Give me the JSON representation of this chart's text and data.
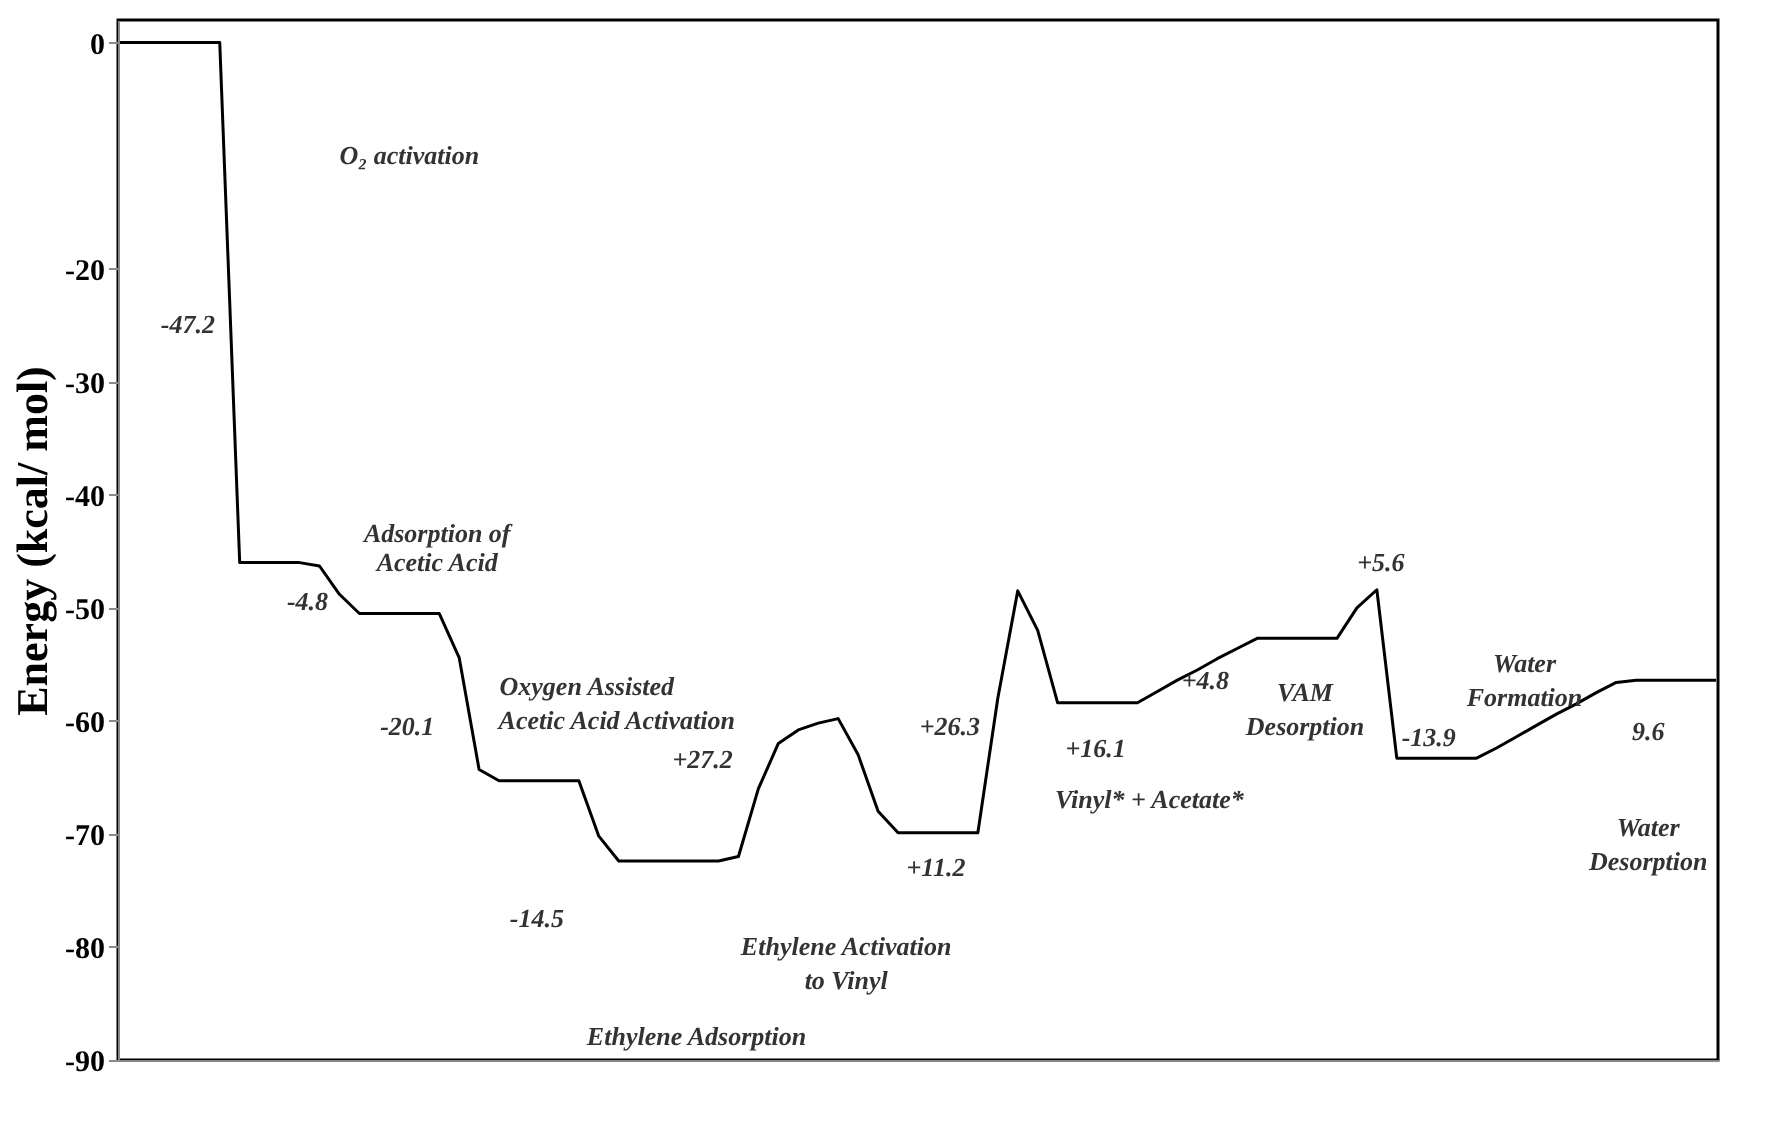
{
  "chart_data": {
    "type": "line",
    "ylabel": "Energy (kcal/ mol)",
    "ylim": [
      -90,
      2
    ],
    "yticks": [
      0,
      -20,
      -30,
      -40,
      -50,
      -60,
      -70,
      -80,
      -90
    ],
    "tick_labels": "y",
    "grid": false,
    "marker": "none",
    "line_style": "solid",
    "categories": [
      null,
      null,
      null,
      null,
      null,
      null,
      null,
      null,
      null,
      null,
      null,
      null,
      null,
      null,
      null,
      null,
      null,
      null,
      null,
      null,
      null,
      null,
      null,
      null,
      null,
      null,
      null,
      null,
      null,
      null,
      null,
      null,
      null,
      null,
      null,
      null,
      null,
      null,
      null,
      null,
      null,
      null,
      null,
      null,
      null,
      null,
      null,
      null,
      null,
      null,
      null,
      null,
      null,
      null,
      null,
      null,
      null,
      null,
      null,
      null,
      null,
      null,
      null,
      null,
      null,
      null,
      null,
      null,
      null,
      null,
      null,
      null,
      null,
      null,
      null,
      null,
      null,
      null,
      null,
      null,
      null
    ],
    "series": [
      {
        "color": "#000000",
        "values": [
          0,
          0,
          0,
          0,
          0,
          0,
          -46,
          -46,
          -46,
          -46,
          -46.3,
          -48.8,
          -50.5,
          -50.5,
          -50.5,
          -50.5,
          -50.5,
          -54.4,
          -64.3,
          -65.3,
          -65.3,
          -65.3,
          -65.3,
          -65.3,
          -70.2,
          -72.4,
          -72.4,
          -72.4,
          -72.4,
          -72.4,
          -72.4,
          -72,
          -66,
          -62,
          -60.8,
          -60.2,
          -59.8,
          -63,
          -68,
          -69.9,
          -69.9,
          -69.9,
          -69.9,
          -69.9,
          -58,
          -48.5,
          -52,
          -58.4,
          -58.4,
          -58.4,
          -58.4,
          -58.4,
          -57.4,
          -56.4,
          -55.5,
          -54.5,
          -53.6,
          -52.7,
          -52.7,
          -52.7,
          -52.7,
          -52.7,
          -50,
          -48.4,
          -63.3,
          -63.3,
          -63.3,
          -63.3,
          -63.3,
          -62.4,
          -61.4,
          -60.4,
          -59.4,
          -58.5,
          -57.5,
          -56.6,
          -56.4,
          -56.4,
          -56.4,
          -56.4,
          -56.4
        ]
      }
    ],
    "annotations": [
      "O₂ activation",
      "-47.2",
      "Adsorption of",
      "Acetic Acid",
      "-4.8",
      "Oxygen Assisted",
      "Acetic Acid Activation",
      "-20.1",
      "-14.5",
      "Ethylene Activation",
      "to Vinyl",
      "Ethylene Adsorption",
      "+27.2",
      "+11.2",
      "+26.3",
      "Vinyl* + Acetate*",
      "+16.1",
      "+4.8",
      "VAM",
      "Desorption",
      "+5.6",
      "Water",
      "Formation",
      "-13.9",
      "9.6",
      "Water",
      "Desorption"
    ]
  }
}
